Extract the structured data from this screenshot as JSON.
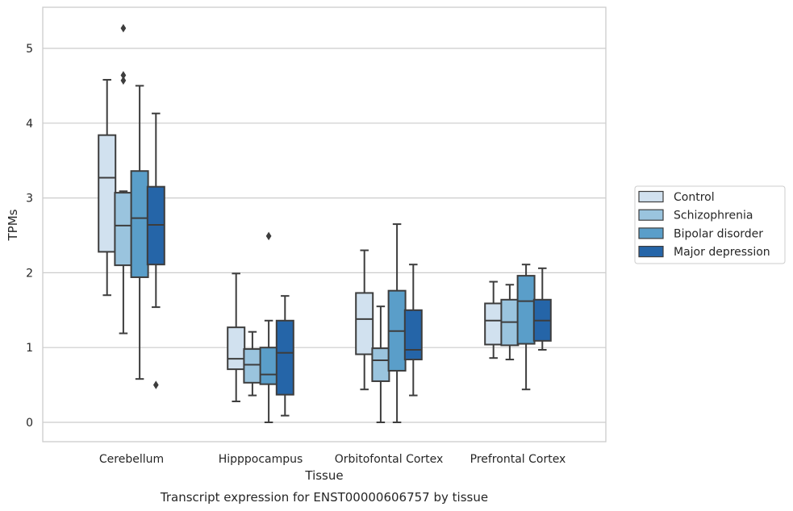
{
  "caption": "Transcript expression for ENST00000606757 by tissue",
  "chart_data": {
    "type": "box",
    "xlabel": "Tissue",
    "ylabel": "TPMs",
    "ylim": [
      -0.25,
      5.5
    ],
    "yticks": [
      0,
      1,
      2,
      3,
      4,
      5
    ],
    "grid": "horizontal",
    "legend_position": "right",
    "categories": [
      "Cerebellum",
      "Hipppocampus",
      "Orbitofontal Cortex",
      "Prefrontal Cortex"
    ],
    "series": [
      {
        "name": "Control",
        "color": "#d1e1ef",
        "boxes": [
          {
            "whislo": 1.7,
            "q1": 2.28,
            "med": 3.27,
            "q3": 3.84,
            "whishi": 4.58,
            "fliers": []
          },
          {
            "whislo": 0.28,
            "q1": 0.71,
            "med": 0.85,
            "q3": 1.27,
            "whishi": 1.99,
            "fliers": []
          },
          {
            "whislo": 0.44,
            "q1": 0.91,
            "med": 1.38,
            "q3": 1.73,
            "whishi": 2.3,
            "fliers": []
          },
          {
            "whislo": 0.86,
            "q1": 1.04,
            "med": 1.36,
            "q3": 1.59,
            "whishi": 1.88,
            "fliers": []
          }
        ]
      },
      {
        "name": "Schizophrenia",
        "color": "#9ac4de",
        "boxes": [
          {
            "whislo": 1.19,
            "q1": 2.1,
            "med": 2.63,
            "q3": 3.07,
            "whishi": 3.09,
            "fliers": [
              4.57,
              4.64,
              5.27
            ]
          },
          {
            "whislo": 0.36,
            "q1": 0.53,
            "med": 0.77,
            "q3": 0.98,
            "whishi": 1.21,
            "fliers": []
          },
          {
            "whislo": 0.0,
            "q1": 0.55,
            "med": 0.83,
            "q3": 0.99,
            "whishi": 1.55,
            "fliers": []
          },
          {
            "whislo": 0.84,
            "q1": 1.03,
            "med": 1.34,
            "q3": 1.64,
            "whishi": 1.84,
            "fliers": []
          }
        ]
      },
      {
        "name": "Bipolar disorder",
        "color": "#5a9ec9",
        "boxes": [
          {
            "whislo": 0.58,
            "q1": 1.94,
            "med": 2.73,
            "q3": 3.36,
            "whishi": 4.5,
            "fliers": []
          },
          {
            "whislo": 0.0,
            "q1": 0.51,
            "med": 0.64,
            "q3": 1.0,
            "whishi": 1.36,
            "fliers": [
              2.49
            ]
          },
          {
            "whislo": 0.0,
            "q1": 0.69,
            "med": 1.22,
            "q3": 1.76,
            "whishi": 2.65,
            "fliers": []
          },
          {
            "whislo": 0.44,
            "q1": 1.05,
            "med": 1.62,
            "q3": 1.96,
            "whishi": 2.11,
            "fliers": []
          }
        ]
      },
      {
        "name": "Major depression",
        "color": "#2565a8",
        "boxes": [
          {
            "whislo": 1.54,
            "q1": 2.11,
            "med": 2.64,
            "q3": 3.15,
            "whishi": 4.13,
            "fliers": [
              0.5
            ]
          },
          {
            "whislo": 0.09,
            "q1": 0.37,
            "med": 0.93,
            "q3": 1.36,
            "whishi": 1.69,
            "fliers": []
          },
          {
            "whislo": 0.36,
            "q1": 0.84,
            "med": 0.97,
            "q3": 1.5,
            "whishi": 2.11,
            "fliers": []
          },
          {
            "whislo": 0.97,
            "q1": 1.09,
            "med": 1.36,
            "q3": 1.64,
            "whishi": 2.06,
            "fliers": []
          }
        ]
      }
    ]
  }
}
